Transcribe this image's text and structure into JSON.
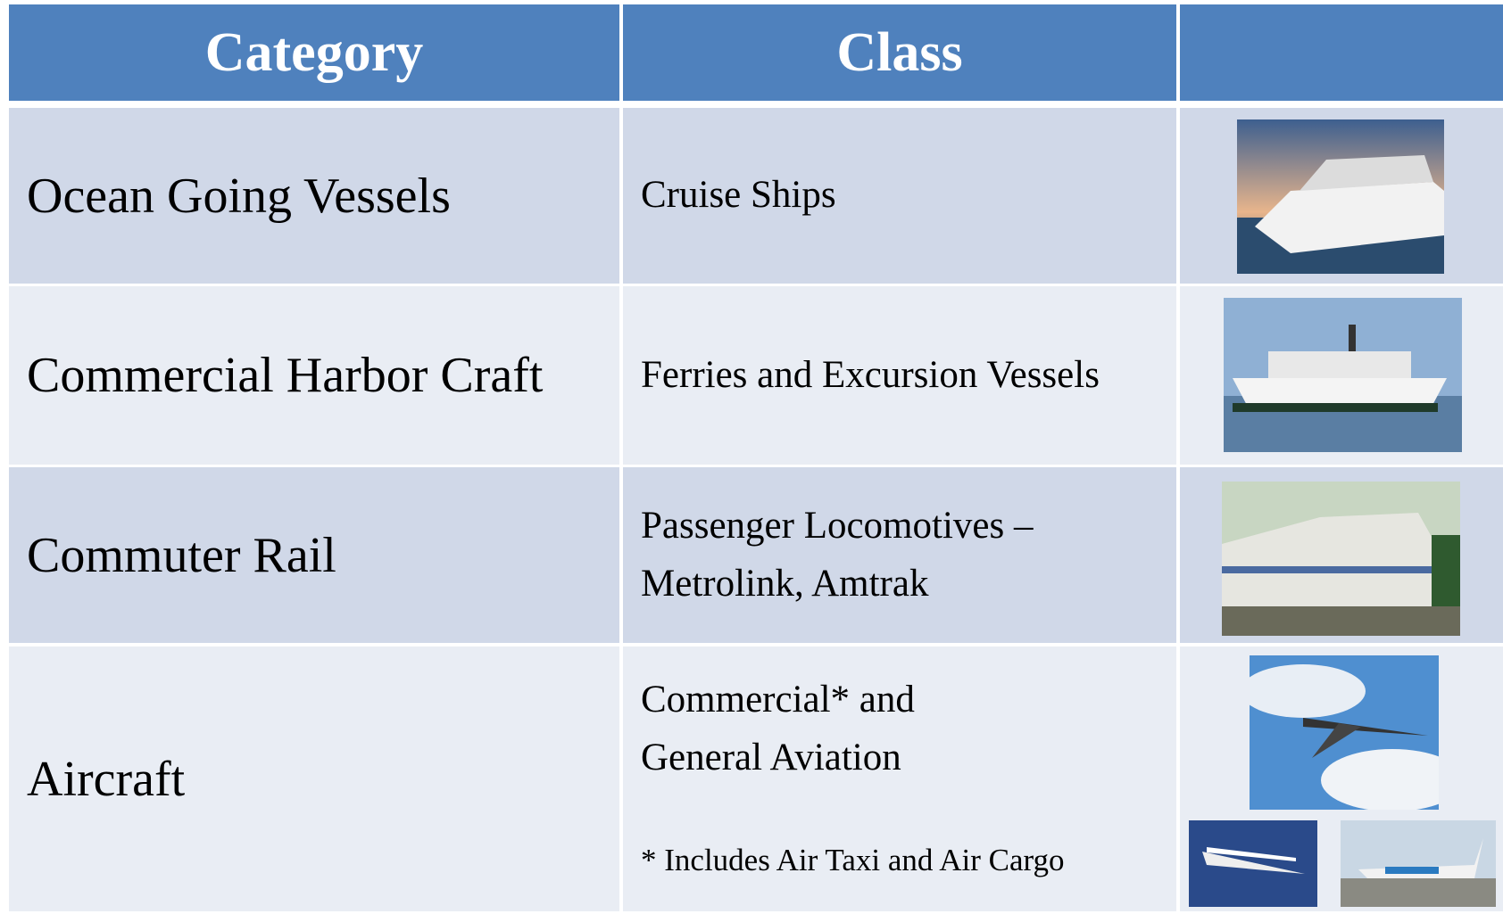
{
  "table": {
    "header": [
      "Category",
      "Class"
    ],
    "rows": [
      {
        "category": "Ocean Going Vessels",
        "class": [
          "Cruise Ships"
        ]
      },
      {
        "category": "Commercial Harbor Craft",
        "class": [
          "Ferries and Excursion Vessels"
        ]
      },
      {
        "category": "Commuter Rail",
        "class": [
          "Passenger Locomotives –",
          "Metrolink, Amtrak"
        ]
      },
      {
        "category": "Aircraft",
        "class": [
          "Commercial* and",
          "General Aviation"
        ],
        "note": "* Includes Air Taxi and Air Cargo"
      }
    ]
  }
}
